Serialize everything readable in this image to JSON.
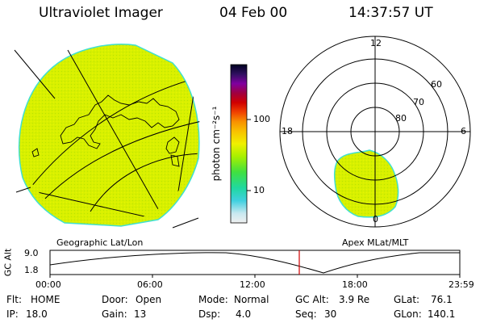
{
  "header": {
    "title": "Ultraviolet Imager",
    "date": "04 Feb 00",
    "time": "14:37:57 UT"
  },
  "colorbar": {
    "unit_label": "photon cm⁻²s⁻¹",
    "ticks": [
      "100",
      "10"
    ]
  },
  "polar": {
    "mlt_labels": [
      "12",
      "18",
      "6",
      "0"
    ],
    "lat_labels": [
      "60",
      "70",
      "80"
    ]
  },
  "panel_labels": {
    "left": "Geographic Lat/Lon",
    "right": "Apex MLat/MLT"
  },
  "altitude_plot": {
    "ylabel": "GC Alt",
    "yticks": [
      "9.0",
      "1.8"
    ],
    "xticks": [
      "00:00",
      "06:00",
      "12:00",
      "18:00",
      "23:59"
    ]
  },
  "info": {
    "flt_label": "Flt:",
    "flt_value": "HOME",
    "ip_label": "IP:",
    "ip_value": "18.0",
    "door_label": "Door:",
    "door_value": "Open",
    "gain_label": "Gain:",
    "gain_value": "13",
    "mode_label": "Mode:",
    "mode_value": "Normal",
    "dsp_label": "Dsp:",
    "dsp_value": "4.0",
    "gcalt_label": "GC Alt:",
    "gcalt_value": "3.9 Re",
    "seq_label": "Seq:",
    "seq_value": "30",
    "glat_label": "GLat:",
    "glat_value": "76.1",
    "glon_label": "GLon:",
    "glon_value": "140.1"
  },
  "colors": {
    "image_fill": "#d8f000",
    "image_edge": "#40e0d0",
    "marker_line": "#d00000"
  }
}
